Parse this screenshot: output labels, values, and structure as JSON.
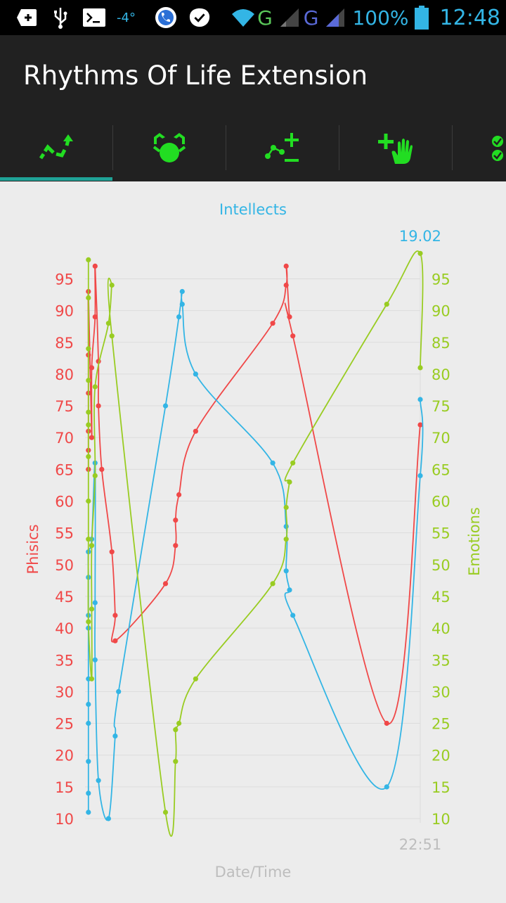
{
  "status_bar": {
    "temperature": "-4°",
    "network_1": "G",
    "network_2": "G",
    "battery_percent": "100%",
    "time": "12:48"
  },
  "app": {
    "title": "Rhythms Of Life Extension"
  },
  "tabs": [
    {
      "name": "tab-rhythms-chart",
      "icon": "trend-arrow-icon",
      "selected": true
    },
    {
      "name": "tab-alarm",
      "icon": "alarm-clock-icon",
      "selected": false
    },
    {
      "name": "tab-add-remove-points",
      "icon": "plot-plus-minus-icon",
      "selected": false
    },
    {
      "name": "tab-add-hand",
      "icon": "plus-hand-icon",
      "selected": false
    },
    {
      "name": "tab-checklist",
      "icon": "checkmarks-icon",
      "selected": false
    }
  ],
  "colors": {
    "physics": "#f04848",
    "emotions": "#99cc22",
    "intellects": "#33b5e5",
    "tab_icon": "#22dd22",
    "tab_indicator": "#1fa296"
  },
  "chart_data": {
    "type": "line",
    "title": "Intellects",
    "xlabel": "Date/Time",
    "ylabel_left": "Phisics",
    "ylabel_right": "Emotions",
    "x_tick_label": "22:51",
    "top_right_label": "19.02",
    "ylim": [
      10,
      97
    ],
    "y_ticks": [
      10,
      15,
      20,
      25,
      30,
      35,
      40,
      45,
      50,
      55,
      60,
      65,
      70,
      75,
      80,
      85,
      90,
      95
    ],
    "x_range": [
      0,
      100
    ],
    "series": [
      {
        "name": "Phisics",
        "color": "#f04848",
        "points": [
          [
            1,
            65
          ],
          [
            1,
            68
          ],
          [
            1,
            71
          ],
          [
            1,
            77
          ],
          [
            1,
            83
          ],
          [
            1,
            93
          ],
          [
            2,
            70
          ],
          [
            2,
            81
          ],
          [
            3,
            89
          ],
          [
            3,
            97
          ],
          [
            4,
            82
          ],
          [
            4,
            75
          ],
          [
            5,
            65
          ],
          [
            8,
            52
          ],
          [
            9,
            42
          ],
          [
            9,
            38
          ],
          [
            24,
            47
          ],
          [
            27,
            53
          ],
          [
            27,
            57
          ],
          [
            28,
            61
          ],
          [
            33,
            71
          ],
          [
            56,
            88
          ],
          [
            60,
            94
          ],
          [
            60,
            97
          ],
          [
            61,
            89
          ],
          [
            62,
            86
          ],
          [
            90,
            25
          ],
          [
            100,
            72
          ]
        ]
      },
      {
        "name": "Intellects",
        "color": "#33b5e5",
        "points": [
          [
            1,
            11
          ],
          [
            1,
            14
          ],
          [
            1,
            19
          ],
          [
            1,
            25
          ],
          [
            1,
            28
          ],
          [
            1,
            32
          ],
          [
            1,
            40
          ],
          [
            1,
            42
          ],
          [
            1,
            48
          ],
          [
            1,
            52
          ],
          [
            2,
            54
          ],
          [
            3,
            66
          ],
          [
            3,
            44
          ],
          [
            3,
            35
          ],
          [
            4,
            16
          ],
          [
            7,
            10
          ],
          [
            9,
            23
          ],
          [
            10,
            30
          ],
          [
            24,
            75
          ],
          [
            28,
            89
          ],
          [
            29,
            93
          ],
          [
            29,
            91
          ],
          [
            33,
            80
          ],
          [
            56,
            66
          ],
          [
            60,
            56
          ],
          [
            60,
            49
          ],
          [
            61,
            46
          ],
          [
            62,
            42
          ],
          [
            90,
            15
          ],
          [
            100,
            64
          ],
          [
            100,
            76
          ]
        ]
      },
      {
        "name": "Emotions",
        "color": "#99cc22",
        "points": [
          [
            1,
            98
          ],
          [
            1,
            92
          ],
          [
            1,
            84
          ],
          [
            1,
            79
          ],
          [
            1,
            74
          ],
          [
            1,
            72
          ],
          [
            1,
            67
          ],
          [
            1,
            60
          ],
          [
            1,
            54
          ],
          [
            1,
            41
          ],
          [
            2,
            32
          ],
          [
            2,
            43
          ],
          [
            2,
            53
          ],
          [
            3,
            64
          ],
          [
            3,
            78
          ],
          [
            7,
            88
          ],
          [
            8,
            94
          ],
          [
            8,
            86
          ],
          [
            24,
            11
          ],
          [
            27,
            19
          ],
          [
            27,
            24
          ],
          [
            28,
            25
          ],
          [
            33,
            32
          ],
          [
            56,
            47
          ],
          [
            60,
            54
          ],
          [
            60,
            59
          ],
          [
            61,
            63
          ],
          [
            62,
            66
          ],
          [
            90,
            91
          ],
          [
            100,
            99
          ],
          [
            100,
            81
          ]
        ]
      }
    ]
  }
}
